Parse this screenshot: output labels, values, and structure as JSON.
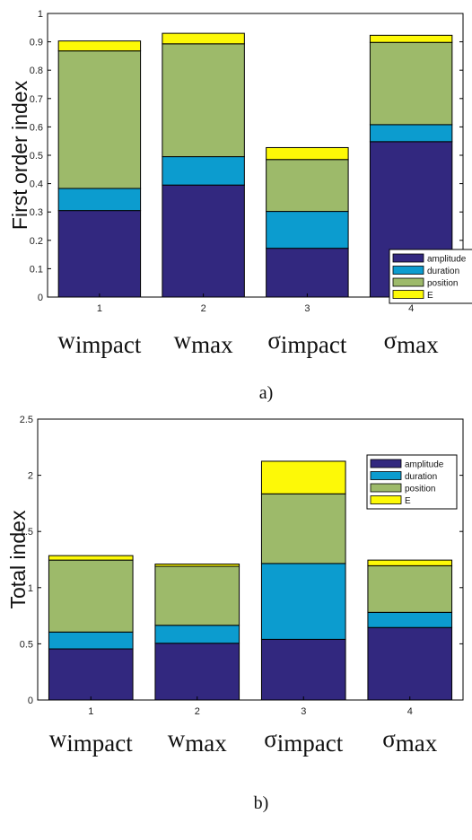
{
  "colors": {
    "amplitude": "#32287f",
    "duration": "#0c9ccf",
    "position": "#9dba6a",
    "E": "#fdf907",
    "axis": "#000000"
  },
  "chart_data": [
    {
      "type": "bar",
      "stacked": true,
      "caption": "a)",
      "ylabel": "First order index",
      "ylim": [
        0,
        1
      ],
      "yticks": [
        "0",
        "0.1",
        "0.2",
        "0.3",
        "0.4",
        "0.5",
        "0.6",
        "0.7",
        "0.8",
        "0.9",
        "1"
      ],
      "categories": [
        "1",
        "2",
        "3",
        "4"
      ],
      "parameter_labels": [
        {
          "main": "w",
          "sub": "impact"
        },
        {
          "main": "w",
          "sub": "max"
        },
        {
          "main": "σ",
          "sub": "impact"
        },
        {
          "main": "σ",
          "sub": "max"
        }
      ],
      "legend_position": "bottom-right",
      "series": [
        {
          "name": "amplitude",
          "values": [
            0.305,
            0.395,
            0.172,
            0.548
          ]
        },
        {
          "name": "duration",
          "values": [
            0.078,
            0.1,
            0.13,
            0.06
          ]
        },
        {
          "name": "position",
          "values": [
            0.485,
            0.398,
            0.183,
            0.29
          ]
        },
        {
          "name": "E",
          "values": [
            0.035,
            0.037,
            0.042,
            0.025
          ]
        }
      ]
    },
    {
      "type": "bar",
      "stacked": true,
      "caption": "b)",
      "ylabel": "Total index",
      "ylim": [
        0,
        2.5
      ],
      "yticks": [
        "0",
        "0.5",
        "1",
        "1.5",
        "2",
        "2.5"
      ],
      "categories": [
        "1",
        "2",
        "3",
        "4"
      ],
      "parameter_labels": [
        {
          "main": "w",
          "sub": "impact"
        },
        {
          "main": "w",
          "sub": "max"
        },
        {
          "main": "σ",
          "sub": "impact"
        },
        {
          "main": "σ",
          "sub": "max"
        }
      ],
      "legend_position": "top-right",
      "series": [
        {
          "name": "amplitude",
          "values": [
            0.455,
            0.505,
            0.54,
            0.645
          ]
        },
        {
          "name": "duration",
          "values": [
            0.15,
            0.16,
            0.675,
            0.135
          ]
        },
        {
          "name": "position",
          "values": [
            0.64,
            0.525,
            0.62,
            0.415
          ]
        },
        {
          "name": "E",
          "values": [
            0.04,
            0.02,
            0.29,
            0.05
          ]
        }
      ]
    }
  ]
}
